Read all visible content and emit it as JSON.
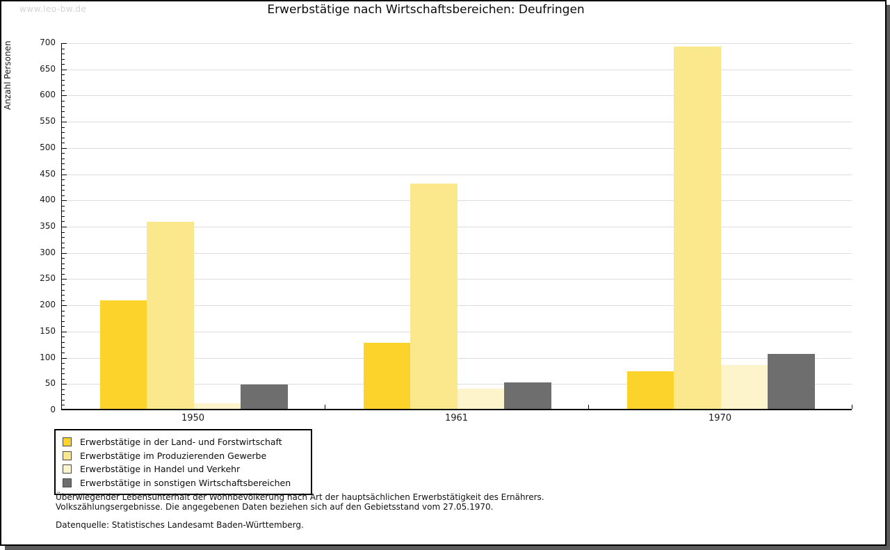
{
  "watermark": "www.leo-bw.de",
  "title": "Erwerbstätige nach Wirtschaftsbereichen: Deufringen",
  "chart_data": {
    "type": "bar",
    "title": "Erwerbstätige nach Wirtschaftsbereichen: Deufringen",
    "ylabel": "Anzahl Personen",
    "xlabel": "",
    "categories": [
      "1950",
      "1961",
      "1970"
    ],
    "series": [
      {
        "name": "Erwerbstätige in der Land- und Forstwirtschaft",
        "color": "#fcd32b",
        "values": [
          207,
          126,
          72
        ]
      },
      {
        "name": "Erwerbstätige im Produzierenden Gewerbe",
        "color": "#fbe88d",
        "values": [
          357,
          429,
          691
        ]
      },
      {
        "name": "Erwerbstätige in Handel und Verkehr",
        "color": "#fdf4cc",
        "values": [
          10,
          39,
          84
        ]
      },
      {
        "name": "Erwerbstätige in sonstigen Wirtschaftsbereichen",
        "color": "#6e6e6e",
        "values": [
          47,
          50,
          105
        ]
      }
    ],
    "ylim": [
      0,
      700
    ],
    "ytick_step": 50,
    "minor_tick_step": 10,
    "grid": true,
    "legend_position": "bottom-left"
  },
  "colors": {
    "gridline": "#dcdcdc",
    "axis": "#000000",
    "frame_shadow": "#5b5b5b",
    "watermark": "#d3d3d3"
  },
  "footnotes": {
    "line1": "Überwiegender Lebensunterhalt der Wohnbevölkerung nach Art der hauptsächlichen Erwerbstätigkeit des Ernährers.",
    "line2": "Volkszählungsergebnisse. Die angegebenen Daten beziehen sich auf den Gebietsstand vom 27.05.1970.",
    "source": "Datenquelle: Statistisches Landesamt Baden-Württemberg."
  }
}
